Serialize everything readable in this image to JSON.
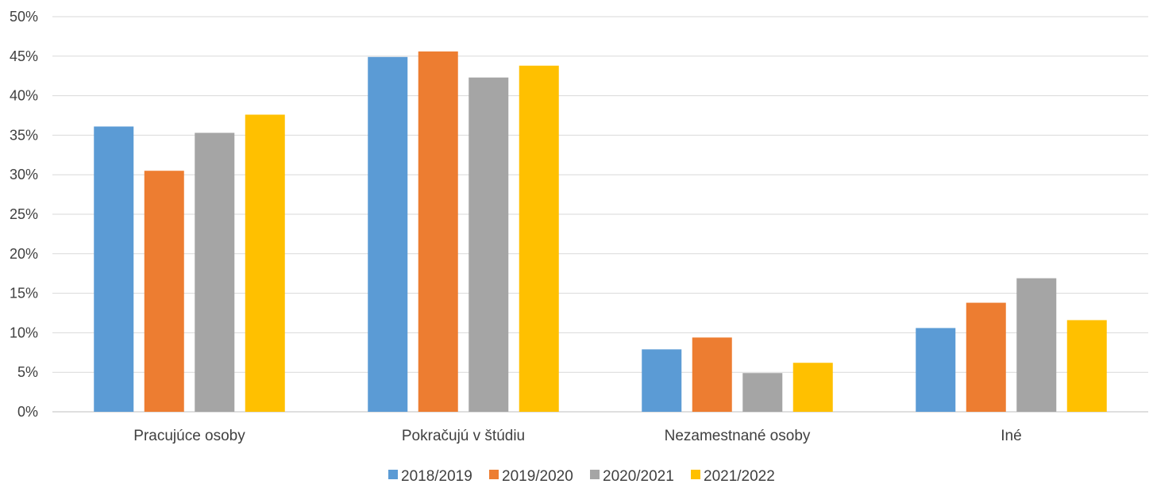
{
  "chart_data": {
    "type": "bar",
    "categories": [
      "Pracujúce osoby",
      "Pokračujú v štúdiu",
      "Nezamestnané osoby",
      "Iné"
    ],
    "series": [
      {
        "name": "2018/2019",
        "color": "#5B9BD5",
        "values": [
          36.1,
          44.9,
          7.9,
          10.6
        ]
      },
      {
        "name": "2019/2020",
        "color": "#ED7D31",
        "values": [
          30.5,
          45.6,
          9.4,
          13.8
        ]
      },
      {
        "name": "2020/2021",
        "color": "#A5A5A5",
        "values": [
          35.3,
          42.3,
          4.9,
          16.9
        ]
      },
      {
        "name": "2021/2022",
        "color": "#FFC000",
        "values": [
          37.6,
          43.8,
          6.2,
          11.6
        ]
      }
    ],
    "yticks": [
      "0%",
      "5%",
      "10%",
      "15%",
      "20%",
      "25%",
      "30%",
      "35%",
      "40%",
      "45%",
      "50%"
    ],
    "ylim": [
      0,
      50
    ],
    "grid": true,
    "legend_position": "bottom"
  }
}
